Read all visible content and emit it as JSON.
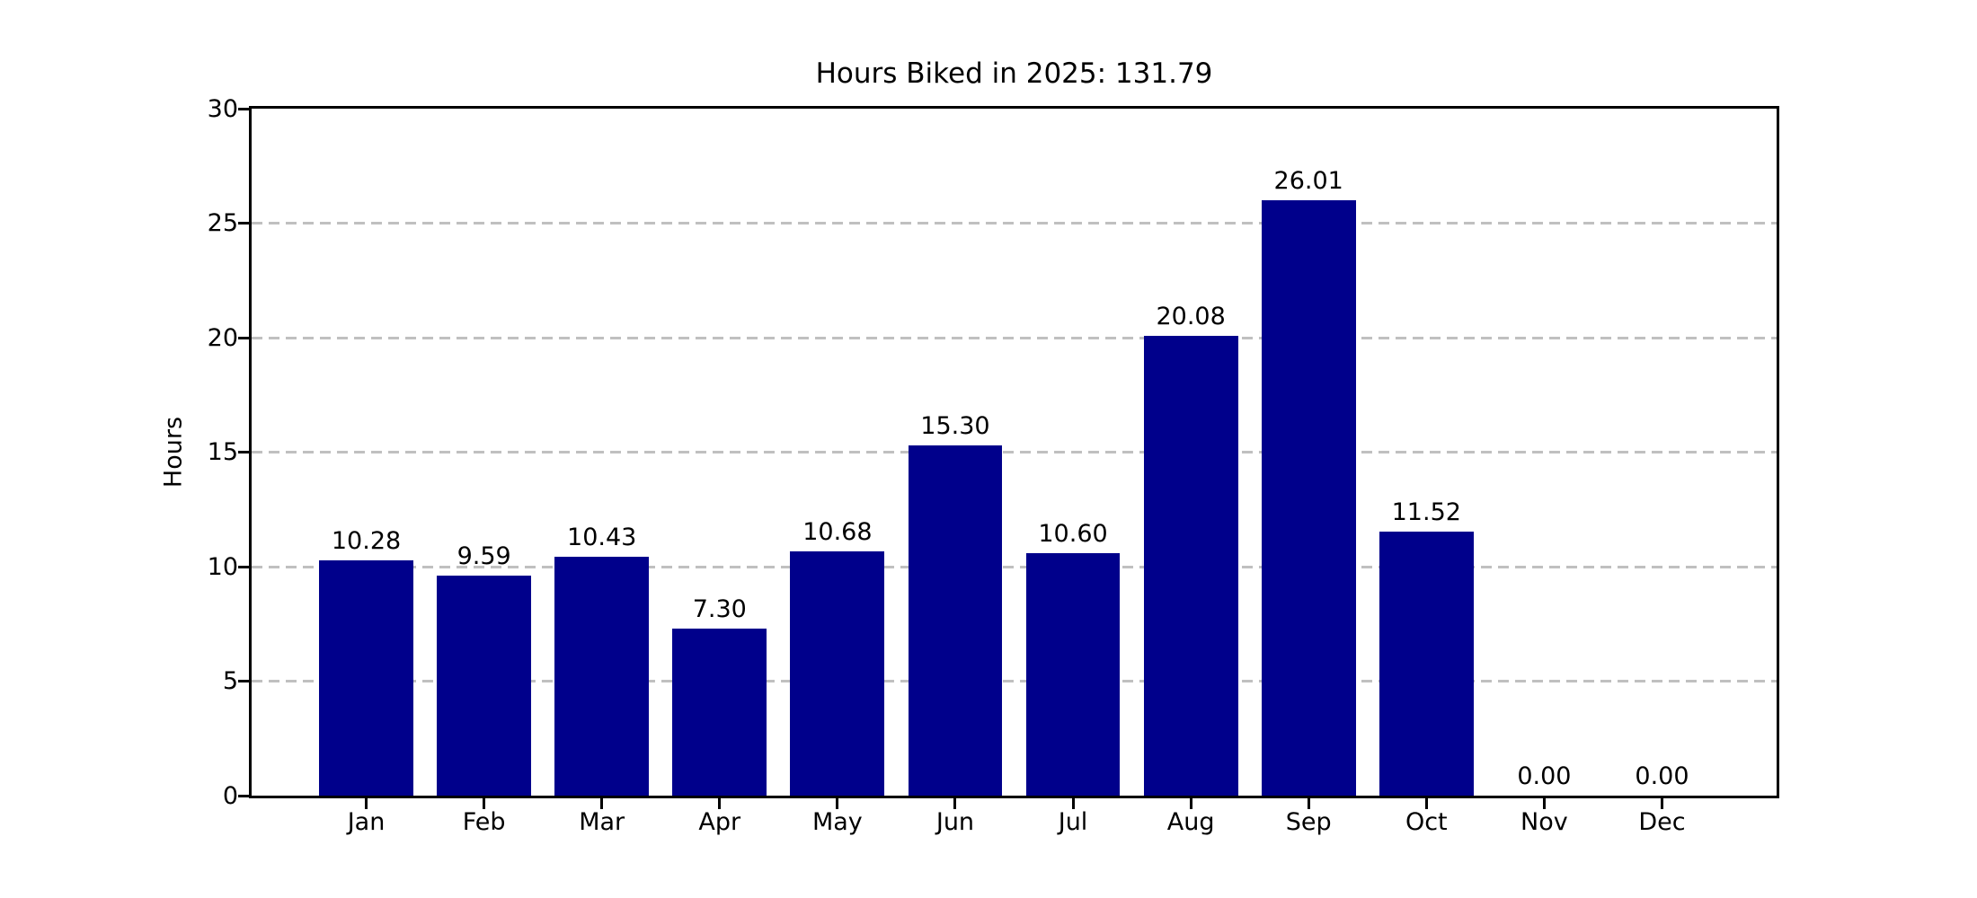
{
  "chart_data": {
    "type": "bar",
    "title": "Hours Biked in 2025: 131.79",
    "xlabel": "",
    "ylabel": "Hours",
    "categories": [
      "Jan",
      "Feb",
      "Mar",
      "Apr",
      "May",
      "Jun",
      "Jul",
      "Aug",
      "Sep",
      "Oct",
      "Nov",
      "Dec"
    ],
    "values": [
      10.28,
      9.59,
      10.43,
      7.3,
      10.68,
      15.3,
      10.6,
      20.08,
      26.01,
      11.52,
      0.0,
      0.0
    ],
    "bar_labels": [
      "10.28",
      "9.59",
      "10.43",
      "7.30",
      "10.68",
      "15.30",
      "10.60",
      "20.08",
      "26.01",
      "11.52",
      "0.00",
      "0.00"
    ],
    "total_hours": "131.79",
    "ylim": [
      0,
      30
    ],
    "yticks": [
      0,
      5,
      10,
      15,
      20,
      25,
      30
    ],
    "grid": "horizontal-dashed",
    "legend": "none",
    "bar_color": "#00008B",
    "grid_color": "#c0c0c0",
    "axis_color": "#000000",
    "background_color": "#ffffff"
  }
}
